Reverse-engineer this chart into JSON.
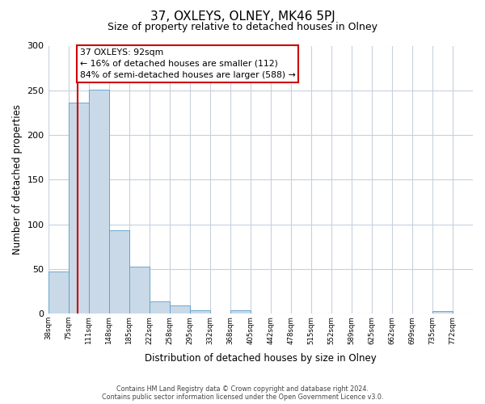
{
  "title": "37, OXLEYS, OLNEY, MK46 5PJ",
  "subtitle": "Size of property relative to detached houses in Olney",
  "xlabel": "Distribution of detached houses by size in Olney",
  "ylabel": "Number of detached properties",
  "bins": [
    "38sqm",
    "75sqm",
    "111sqm",
    "148sqm",
    "185sqm",
    "222sqm",
    "258sqm",
    "295sqm",
    "332sqm",
    "368sqm",
    "405sqm",
    "442sqm",
    "478sqm",
    "515sqm",
    "552sqm",
    "589sqm",
    "625sqm",
    "662sqm",
    "699sqm",
    "735sqm",
    "772sqm"
  ],
  "bar_heights": [
    47,
    236,
    251,
    93,
    53,
    14,
    9,
    4,
    0,
    4,
    0,
    0,
    0,
    0,
    0,
    0,
    0,
    0,
    0,
    3,
    0
  ],
  "bar_color": "#c9d9e8",
  "bar_edge_color": "#5a9ec8",
  "vline_color": "#cc0000",
  "ylim": [
    0,
    300
  ],
  "yticks": [
    0,
    50,
    100,
    150,
    200,
    250,
    300
  ],
  "annotation_line1": "37 OXLEYS: 92sqm",
  "annotation_line2": "← 16% of detached houses are smaller (112)",
  "annotation_line3": "84% of semi-detached houses are larger (588) →",
  "annotation_box_color": "#ffffff",
  "annotation_box_edge_color": "#cc0000",
  "footnote1": "Contains HM Land Registry data © Crown copyright and database right 2024.",
  "footnote2": "Contains public sector information licensed under the Open Government Licence v3.0.",
  "bg_color": "#ffffff",
  "grid_color": "#c8d0de",
  "bin_edges_val": [
    38,
    75,
    111,
    148,
    185,
    222,
    258,
    295,
    332,
    368,
    405,
    442,
    478,
    515,
    552,
    589,
    625,
    662,
    699,
    735,
    772
  ],
  "vline_val": 92
}
